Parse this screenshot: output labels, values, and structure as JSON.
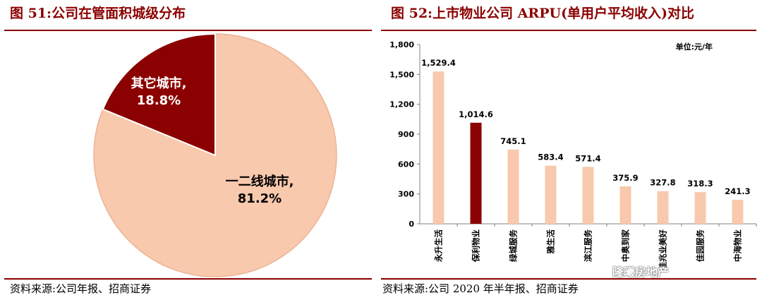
{
  "watermark": "隆曦房地产",
  "colors": {
    "primary": "#8B0000",
    "light": "#F8C9AD",
    "light_stroke": "#EDB394"
  },
  "charts": [
    {
      "figure_title": "图 51:公司在管面积城级分布",
      "source": "资料来源:公司年报、招商证券"
    },
    {
      "figure_title": "图 52:上市物业公司 ARPU(单用户平均收入)对比",
      "source": "资料来源:公司 2020 年半年报、招商证券",
      "unit_label": "单位:元/年"
    }
  ],
  "chart_data": [
    {
      "type": "pie",
      "title": "公司在管面积城级分布",
      "slices": [
        {
          "label": "一二线城市,",
          "value": 81.2,
          "value_label": "81.2%",
          "color": "#F8C9AD"
        },
        {
          "label": "其它城市,",
          "value": 18.8,
          "value_label": "18.8%",
          "color": "#8B0000"
        }
      ]
    },
    {
      "type": "bar",
      "title": "上市物业公司 ARPU(单用户平均收入)对比",
      "unit": "元/年",
      "ylim": [
        0,
        1800
      ],
      "yticks": [
        0,
        300,
        600,
        900,
        1200,
        1500,
        1800
      ],
      "ytick_labels": [
        "0",
        "300",
        "600",
        "900",
        "1,200",
        "1,500",
        "1,800"
      ],
      "categories": [
        "永升生活",
        "保利物业",
        "绿城服务",
        "雅生活",
        "滨江服务",
        "中奥到家",
        "佳兆业美好",
        "佳园服务",
        "中海物业"
      ],
      "values": [
        1529.4,
        1014.6,
        745.1,
        583.4,
        571.4,
        375.9,
        327.8,
        318.3,
        241.3
      ],
      "value_labels": [
        "1,529.4",
        "1,014.6",
        "745.1",
        "583.4",
        "571.4",
        "375.9",
        "327.8",
        "318.3",
        "241.3"
      ],
      "highlight_index": 1
    }
  ]
}
